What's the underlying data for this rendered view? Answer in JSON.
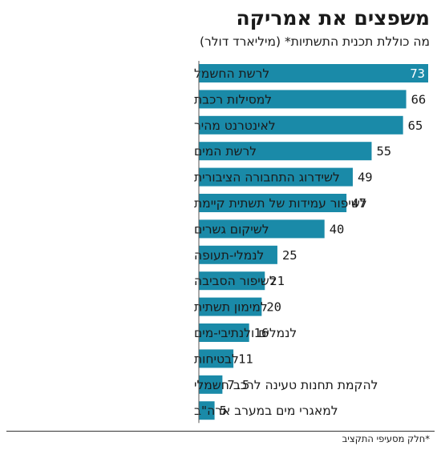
{
  "chart_data": {
    "type": "bar",
    "orientation": "horizontal",
    "title": "משפצים את אמריקה",
    "subtitle": "מה כוללת תכנית התשתיות* (מיליארד דולר)",
    "categories": [
      "לרשת החשמל",
      "למסילות רכבת",
      "לאינטרנט מהיר",
      "לרשת המים",
      "לשידרוג התחבורה הציבורית",
      "לשיפור עמידות של תשתית קיימת",
      "לשיקום גשרים",
      "לנמלי-תעופה",
      "לשיפור הסביבה",
      "למימון תשתית",
      "לנמלים ולנתיבי-מים",
      "לבטיחות",
      "להקמת תחנות טעינה לרכב חשמלי",
      "למאגרי מים במערב ארה\"ב"
    ],
    "values": [
      73,
      66,
      65,
      55,
      49,
      47,
      40,
      25,
      21,
      20,
      16,
      11,
      7.5,
      5
    ],
    "value_labels": [
      "73",
      "66",
      "65",
      "55",
      "49",
      "47",
      "40",
      "25",
      "21",
      "20",
      "16",
      "11",
      "7.5",
      "5"
    ],
    "xlim": [
      0,
      73
    ],
    "grid": false,
    "bar_color": "#1a8aa8",
    "footnote": "*חלק מסעיפי התקציב"
  }
}
